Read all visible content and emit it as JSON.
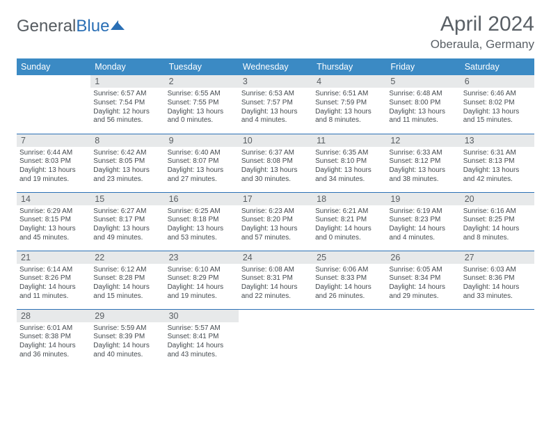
{
  "brand": {
    "part1": "General",
    "part2": "Blue"
  },
  "title": "April 2024",
  "location": "Oberaula, Germany",
  "dayNames": [
    "Sunday",
    "Monday",
    "Tuesday",
    "Wednesday",
    "Thursday",
    "Friday",
    "Saturday"
  ],
  "colors": {
    "header_bg": "#3b8ac4",
    "header_fg": "#ffffff",
    "row_border": "#2a6fb5",
    "daynum_bg": "#e7e9ea",
    "text_gray": "#5a6066",
    "body_text": "#444a4f"
  },
  "weeks": [
    [
      {
        "n": "",
        "empty": true
      },
      {
        "n": "1",
        "sr": "6:57 AM",
        "ss": "7:54 PM",
        "dl": "12 hours and 56 minutes."
      },
      {
        "n": "2",
        "sr": "6:55 AM",
        "ss": "7:55 PM",
        "dl": "13 hours and 0 minutes."
      },
      {
        "n": "3",
        "sr": "6:53 AM",
        "ss": "7:57 PM",
        "dl": "13 hours and 4 minutes."
      },
      {
        "n": "4",
        "sr": "6:51 AM",
        "ss": "7:59 PM",
        "dl": "13 hours and 8 minutes."
      },
      {
        "n": "5",
        "sr": "6:48 AM",
        "ss": "8:00 PM",
        "dl": "13 hours and 11 minutes."
      },
      {
        "n": "6",
        "sr": "6:46 AM",
        "ss": "8:02 PM",
        "dl": "13 hours and 15 minutes."
      }
    ],
    [
      {
        "n": "7",
        "sr": "6:44 AM",
        "ss": "8:03 PM",
        "dl": "13 hours and 19 minutes."
      },
      {
        "n": "8",
        "sr": "6:42 AM",
        "ss": "8:05 PM",
        "dl": "13 hours and 23 minutes."
      },
      {
        "n": "9",
        "sr": "6:40 AM",
        "ss": "8:07 PM",
        "dl": "13 hours and 27 minutes."
      },
      {
        "n": "10",
        "sr": "6:37 AM",
        "ss": "8:08 PM",
        "dl": "13 hours and 30 minutes."
      },
      {
        "n": "11",
        "sr": "6:35 AM",
        "ss": "8:10 PM",
        "dl": "13 hours and 34 minutes."
      },
      {
        "n": "12",
        "sr": "6:33 AM",
        "ss": "8:12 PM",
        "dl": "13 hours and 38 minutes."
      },
      {
        "n": "13",
        "sr": "6:31 AM",
        "ss": "8:13 PM",
        "dl": "13 hours and 42 minutes."
      }
    ],
    [
      {
        "n": "14",
        "sr": "6:29 AM",
        "ss": "8:15 PM",
        "dl": "13 hours and 45 minutes."
      },
      {
        "n": "15",
        "sr": "6:27 AM",
        "ss": "8:17 PM",
        "dl": "13 hours and 49 minutes."
      },
      {
        "n": "16",
        "sr": "6:25 AM",
        "ss": "8:18 PM",
        "dl": "13 hours and 53 minutes."
      },
      {
        "n": "17",
        "sr": "6:23 AM",
        "ss": "8:20 PM",
        "dl": "13 hours and 57 minutes."
      },
      {
        "n": "18",
        "sr": "6:21 AM",
        "ss": "8:21 PM",
        "dl": "14 hours and 0 minutes."
      },
      {
        "n": "19",
        "sr": "6:19 AM",
        "ss": "8:23 PM",
        "dl": "14 hours and 4 minutes."
      },
      {
        "n": "20",
        "sr": "6:16 AM",
        "ss": "8:25 PM",
        "dl": "14 hours and 8 minutes."
      }
    ],
    [
      {
        "n": "21",
        "sr": "6:14 AM",
        "ss": "8:26 PM",
        "dl": "14 hours and 11 minutes."
      },
      {
        "n": "22",
        "sr": "6:12 AM",
        "ss": "8:28 PM",
        "dl": "14 hours and 15 minutes."
      },
      {
        "n": "23",
        "sr": "6:10 AM",
        "ss": "8:29 PM",
        "dl": "14 hours and 19 minutes."
      },
      {
        "n": "24",
        "sr": "6:08 AM",
        "ss": "8:31 PM",
        "dl": "14 hours and 22 minutes."
      },
      {
        "n": "25",
        "sr": "6:06 AM",
        "ss": "8:33 PM",
        "dl": "14 hours and 26 minutes."
      },
      {
        "n": "26",
        "sr": "6:05 AM",
        "ss": "8:34 PM",
        "dl": "14 hours and 29 minutes."
      },
      {
        "n": "27",
        "sr": "6:03 AM",
        "ss": "8:36 PM",
        "dl": "14 hours and 33 minutes."
      }
    ],
    [
      {
        "n": "28",
        "sr": "6:01 AM",
        "ss": "8:38 PM",
        "dl": "14 hours and 36 minutes."
      },
      {
        "n": "29",
        "sr": "5:59 AM",
        "ss": "8:39 PM",
        "dl": "14 hours and 40 minutes."
      },
      {
        "n": "30",
        "sr": "5:57 AM",
        "ss": "8:41 PM",
        "dl": "14 hours and 43 minutes."
      },
      {
        "n": "",
        "empty": true
      },
      {
        "n": "",
        "empty": true
      },
      {
        "n": "",
        "empty": true
      },
      {
        "n": "",
        "empty": true
      }
    ]
  ],
  "labels": {
    "sunrise": "Sunrise: ",
    "sunset": "Sunset: ",
    "daylight": "Daylight: "
  }
}
